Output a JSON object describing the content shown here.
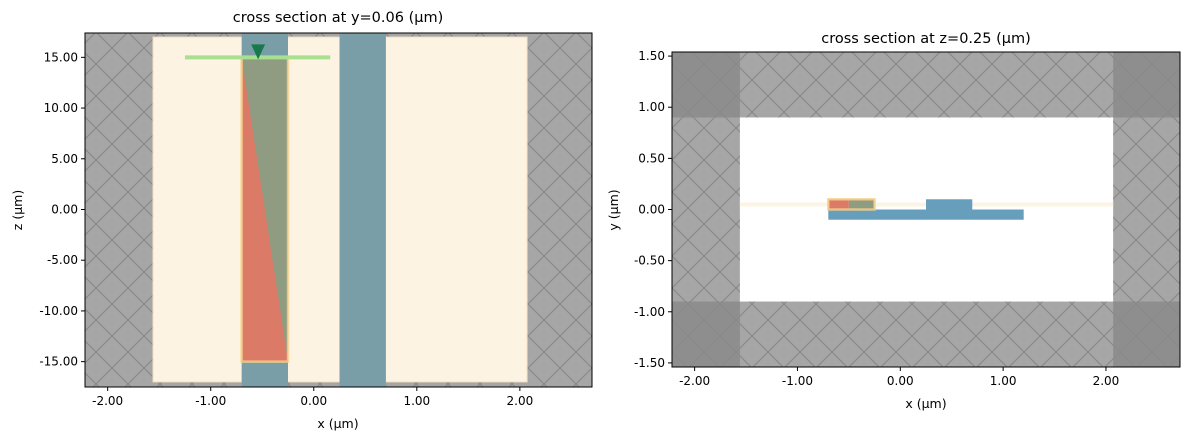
{
  "chart_data": [
    {
      "type": "cross-section",
      "title": "cross section at y=0.06 (μm)",
      "xlabel": "x (μm)",
      "ylabel": "z (μm)",
      "xlim": [
        -2.22,
        2.7
      ],
      "ylim": [
        -17.5,
        17.4
      ],
      "xticks": [
        -2,
        -1,
        0,
        1,
        2
      ],
      "xtick_labels": [
        "-2.00",
        "-1.00",
        "0.00",
        "1.00",
        "2.00"
      ],
      "yticks": [
        15,
        10,
        5,
        0,
        -5,
        -10,
        -15
      ],
      "ytick_labels": [
        "15.00",
        "10.00",
        "5.00",
        "0.00",
        "-5.00",
        "-10.00",
        "-15.00"
      ],
      "grid": false,
      "pml_hatched_background": true,
      "simulation_region": {
        "x": [
          -1.56,
          2.07
        ],
        "y": [
          -17.0,
          17.0
        ],
        "color": "#fdf3e3"
      },
      "structures": [
        {
          "name": "waveguide-1",
          "x": [
            -0.7,
            -0.25
          ],
          "y": [
            -17.5,
            17.4
          ],
          "color": "#7a9ea8"
        },
        {
          "name": "waveguide-2",
          "x": [
            0.25,
            0.7
          ],
          "y": [
            -17.5,
            17.4
          ],
          "color": "#7a9ea8"
        },
        {
          "name": "taper-overlay",
          "x": [
            -0.7,
            -0.25
          ],
          "y": [
            -15,
            15
          ],
          "color": "#8f9c82"
        },
        {
          "name": "taper-triangle",
          "polygon": [
            [
              -0.7,
              15
            ],
            [
              -0.7,
              -15
            ],
            [
              -0.25,
              -15
            ]
          ],
          "color": "#dc7a68"
        }
      ],
      "region_outline": {
        "x": [
          -0.7,
          -0.25
        ],
        "y": [
          -15,
          15
        ],
        "color": "#f7d08a"
      },
      "source": {
        "x": [
          -1.25,
          0.16
        ],
        "y": 15,
        "color": "#a8e090"
      },
      "source_direction_marker": {
        "x": -0.54,
        "y": 15,
        "color": "#187a4c"
      }
    },
    {
      "type": "cross-section",
      "title": "cross section at z=0.25 (μm)",
      "xlabel": "x (μm)",
      "ylabel": "y (μm)",
      "xlim": [
        -2.22,
        2.72
      ],
      "ylim": [
        -1.54,
        1.54
      ],
      "xticks": [
        -2,
        -1,
        0,
        1,
        2
      ],
      "xtick_labels": [
        "-2.00",
        "-1.00",
        "0.00",
        "1.00",
        "2.00"
      ],
      "yticks": [
        1.5,
        1,
        0.5,
        0,
        -0.5,
        -1,
        -1.5
      ],
      "ytick_labels": [
        "1.50",
        "1.00",
        "0.50",
        "0.00",
        "-0.50",
        "-1.00",
        "-1.50"
      ],
      "grid": false,
      "pml_x": [
        -1.56,
        2.07
      ],
      "pml_y": [
        -0.9,
        0.9
      ],
      "simulation_line": {
        "x": [
          -1.56,
          2.07
        ],
        "y": 0.05,
        "color": "#fdf3e3"
      },
      "structures": [
        {
          "name": "slab",
          "x": [
            -0.7,
            1.2
          ],
          "y": [
            -0.1,
            0.0
          ],
          "color": "#679ebb"
        },
        {
          "name": "block-red",
          "x": [
            -0.7,
            -0.5
          ],
          "y": [
            0.0,
            0.1
          ],
          "color": "#dc7a68"
        },
        {
          "name": "block-green",
          "x": [
            -0.5,
            -0.25
          ],
          "y": [
            0.0,
            0.1
          ],
          "color": "#8f9c82"
        },
        {
          "name": "block-right",
          "x": [
            0.25,
            0.7
          ],
          "y": [
            0.0,
            0.1
          ],
          "color": "#679ebb"
        }
      ],
      "region_outline": {
        "x": [
          -0.7,
          -0.25
        ],
        "y": [
          0.0,
          0.1
        ],
        "color": "#f7d08a"
      }
    }
  ],
  "colors": {
    "pml": "#a6a6a6",
    "pml_corner": "#8e8e8e",
    "hatch": "#8a8a8a"
  }
}
